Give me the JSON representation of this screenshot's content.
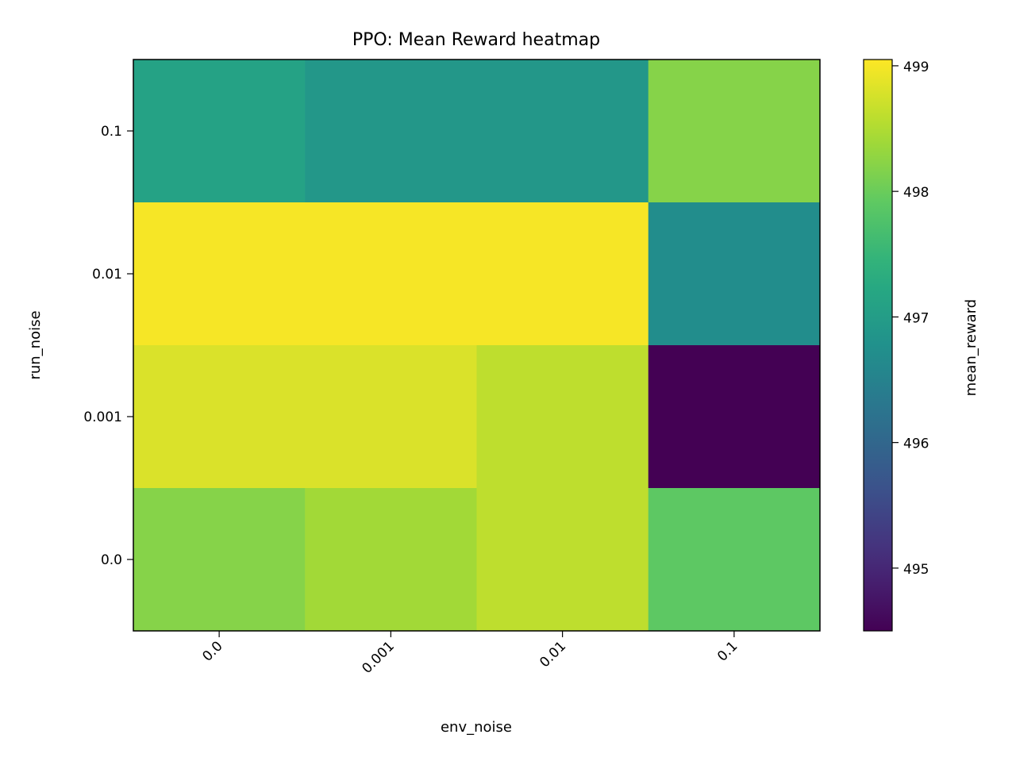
{
  "chart_data": {
    "type": "heatmap",
    "title": "PPO: Mean Reward heatmap",
    "xlabel": "env_noise",
    "ylabel": "run_noise",
    "x_categories": [
      "0.0",
      "0.001",
      "0.01",
      "0.1"
    ],
    "y_categories": [
      "0.1",
      "0.01",
      "0.001",
      "0.0"
    ],
    "values": [
      [
        497.1,
        496.9,
        496.9,
        498.2
      ],
      [
        499.0,
        499.0,
        499.0,
        496.7
      ],
      [
        498.8,
        498.8,
        498.6,
        494.5
      ],
      [
        498.2,
        498.4,
        498.6,
        497.9
      ]
    ],
    "colorbar": {
      "label": "mean_reward",
      "range": [
        494.5,
        499.05
      ],
      "ticks": [
        495,
        496,
        497,
        498,
        499
      ],
      "colormap": "viridis"
    },
    "grid": false
  }
}
